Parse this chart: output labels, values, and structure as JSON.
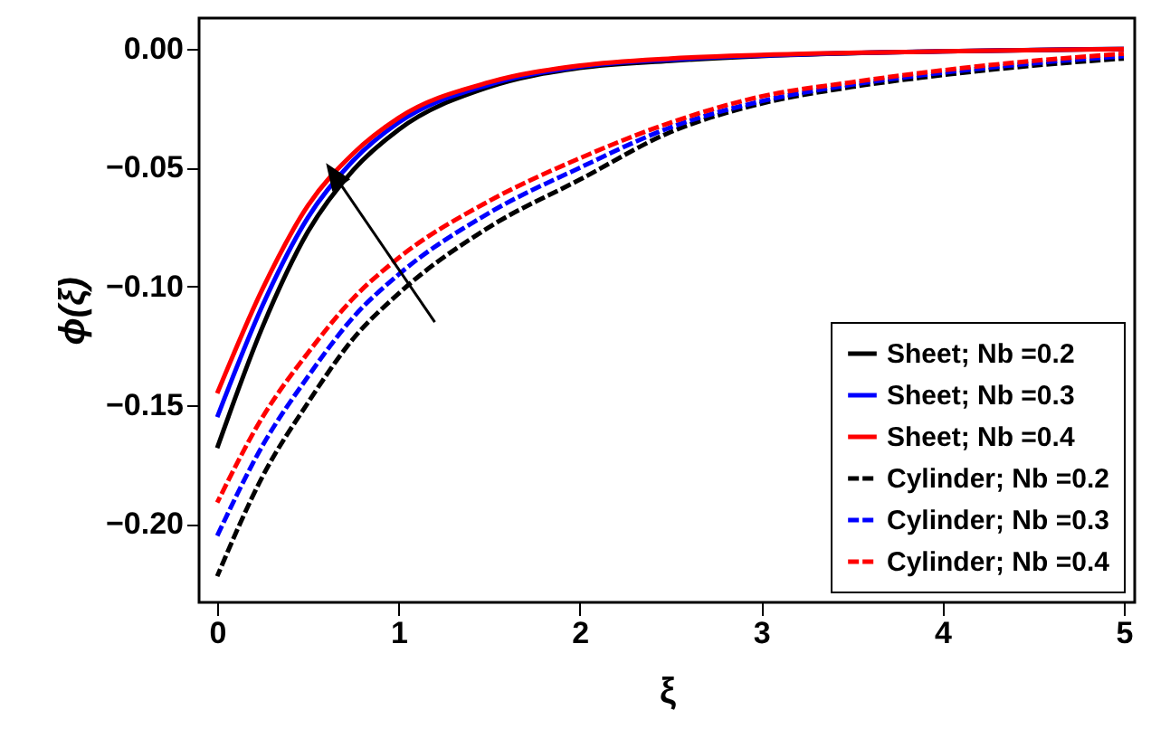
{
  "chart_data": {
    "type": "line",
    "xlabel": "ξ",
    "ylabel": "ϕ(ξ)",
    "xlim": [
      -0.1,
      5.06
    ],
    "ylim": [
      -0.233,
      0.013
    ],
    "xticks": [
      0,
      1,
      2,
      3,
      4,
      5
    ],
    "yticks": [
      {
        "value": -0.2,
        "label": "−0.20"
      },
      {
        "value": -0.15,
        "label": "−0.15"
      },
      {
        "value": -0.1,
        "label": "−0.10"
      },
      {
        "value": -0.05,
        "label": "−0.05"
      },
      {
        "value": 0,
        "label": "0.00"
      }
    ],
    "legend": "bottom right",
    "series": [
      {
        "name": "Sheet;   Nb =0.2",
        "color": "#000000",
        "line_style": "solid",
        "x": [
          0,
          0.25,
          0.5,
          0.75,
          1,
          1.5,
          2,
          2.5,
          3,
          4,
          5
        ],
        "values": [
          -0.168,
          -0.117,
          -0.077,
          -0.051,
          -0.034,
          -0.016,
          -0.008,
          -0.005,
          -0.003,
          -0.001,
          0
        ]
      },
      {
        "name": "Sheet;   Nb =0.3",
        "color": "#0000ff",
        "line_style": "solid",
        "x": [
          0,
          0.25,
          0.5,
          0.75,
          1,
          1.5,
          2,
          2.5,
          3,
          4,
          5
        ],
        "values": [
          -0.155,
          -0.108,
          -0.071,
          -0.047,
          -0.031,
          -0.015,
          -0.0075,
          -0.0045,
          -0.0028,
          -0.001,
          0
        ]
      },
      {
        "name": "Sheet;   Nb =0.4",
        "color": "#ff0000",
        "line_style": "solid",
        "x": [
          0,
          0.25,
          0.5,
          0.75,
          1,
          1.5,
          2,
          2.5,
          3,
          4,
          5
        ],
        "values": [
          -0.145,
          -0.101,
          -0.066,
          -0.044,
          -0.029,
          -0.014,
          -0.007,
          -0.004,
          -0.0025,
          -0.001,
          0
        ]
      },
      {
        "name": "Cylinder; Nb =0.2",
        "color": "#000000",
        "line_style": "dashed",
        "x": [
          0,
          0.25,
          0.5,
          0.75,
          1,
          1.5,
          2,
          2.5,
          3,
          3.5,
          4,
          4.5,
          5
        ],
        "values": [
          -0.222,
          -0.18,
          -0.149,
          -0.122,
          -0.103,
          -0.075,
          -0.055,
          -0.035,
          -0.023,
          -0.016,
          -0.011,
          -0.007,
          -0.004
        ]
      },
      {
        "name": "Cylinder; Nb =0.3",
        "color": "#0000ff",
        "line_style": "dashed",
        "x": [
          0,
          0.25,
          0.5,
          0.75,
          1,
          1.5,
          2,
          2.5,
          3,
          3.5,
          4,
          4.5,
          5
        ],
        "values": [
          -0.205,
          -0.167,
          -0.138,
          -0.113,
          -0.095,
          -0.069,
          -0.05,
          -0.033,
          -0.022,
          -0.015,
          -0.01,
          -0.006,
          -0.003
        ]
      },
      {
        "name": "Cylinder; Nb =0.4",
        "color": "#ff0000",
        "line_style": "dashed",
        "x": [
          0,
          0.25,
          0.5,
          0.75,
          1,
          1.5,
          2,
          2.5,
          3,
          3.5,
          4,
          4.5,
          5
        ],
        "values": [
          -0.191,
          -0.155,
          -0.128,
          -0.105,
          -0.088,
          -0.064,
          -0.046,
          -0.031,
          -0.02,
          -0.014,
          -0.009,
          -0.005,
          -0.002
        ]
      }
    ]
  }
}
